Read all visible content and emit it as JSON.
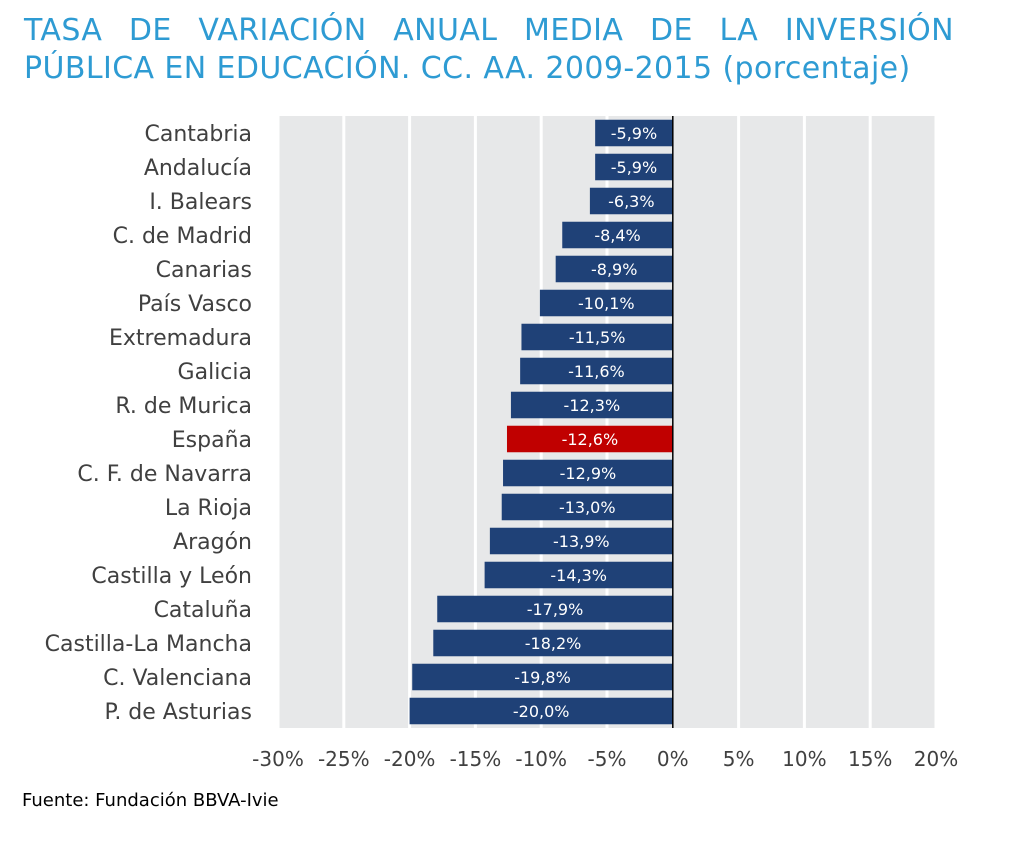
{
  "title_line1": "TASA DE VARIACIÓN ANUAL MEDIA DE LA INVERSIÓN",
  "title_line2": "PÚBLICA EN EDUCACIÓN. CC. AA. 2009-2015 (porcentaje)",
  "source": "Fuente: Fundación BBVA-Ivie",
  "colors": {
    "bar": "#1f4177",
    "highlight": "#c00000",
    "title": "#2e9bd3",
    "plot_bg": "#e7e8e9",
    "grid": "#ffffff"
  },
  "chart_data": {
    "type": "bar",
    "orientation": "horizontal",
    "categories": [
      "Cantabria",
      "Andalucía",
      "I. Balears",
      "C. de Madrid",
      "Canarias",
      "País Vasco",
      "Extremadura",
      "Galicia",
      "R. de Murica",
      "España",
      "C. F. de Navarra",
      "La Rioja",
      "Aragón",
      "Castilla y León",
      "Cataluña",
      "Castilla-La Mancha",
      "C. Valenciana",
      "P. de Asturias"
    ],
    "values": [
      -5.9,
      -5.9,
      -6.3,
      -8.4,
      -8.9,
      -10.1,
      -11.5,
      -11.6,
      -12.3,
      -12.6,
      -12.9,
      -13.0,
      -13.9,
      -14.3,
      -17.9,
      -18.2,
      -19.8,
      -20.0
    ],
    "data_labels": [
      "-5,9%",
      "-5,9%",
      "-6,3%",
      "-8,4%",
      "-8,9%",
      "-10,1%",
      "-11,5%",
      "-11,6%",
      "-12,3%",
      "-12,6%",
      "-12,9%",
      "-13,0%",
      "-13,9%",
      "-14,3%",
      "-17,9%",
      "-18,2%",
      "-19,8%",
      "-20,0%"
    ],
    "highlight": "España",
    "xlim": [
      -30,
      20
    ],
    "xticks": [
      -30,
      -25,
      -20,
      -15,
      -10,
      -5,
      0,
      5,
      10,
      15,
      20
    ],
    "xtick_labels": [
      "-30%",
      "-25%",
      "-20%",
      "-15%",
      "-10%",
      "-5%",
      "0%",
      "5%",
      "10%",
      "15%",
      "20%"
    ],
    "grid": true,
    "legend": false
  }
}
